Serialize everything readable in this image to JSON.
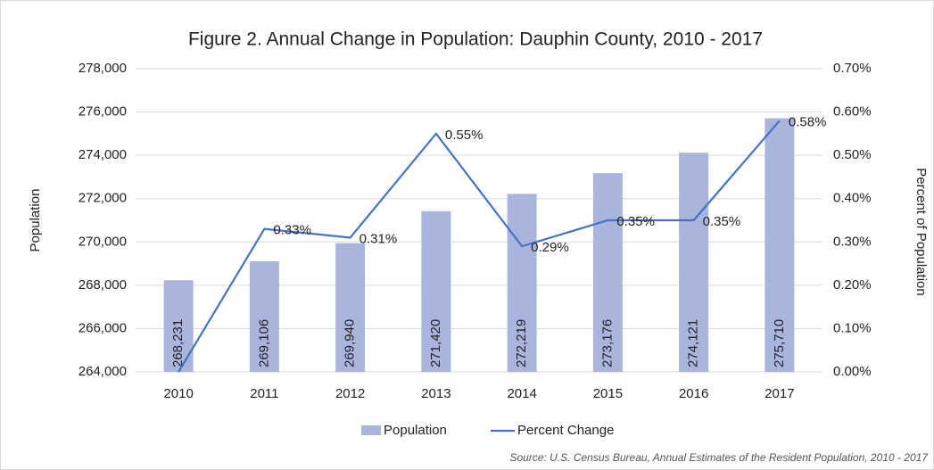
{
  "chart_data": {
    "type": "bar_line",
    "title": "Figure 2. Annual Change in Population: Dauphin County, 2010 - 2017",
    "y_label": "Population",
    "y2_label": "Percent of Population",
    "source": "Source: U.S. Census Bureau, Annual Estimates of the Resident Population, 2010 - 2017",
    "categories": [
      "2010",
      "2011",
      "2012",
      "2013",
      "2014",
      "2015",
      "2016",
      "2017"
    ],
    "series": [
      {
        "name": "Population",
        "type": "bar",
        "color": "#a9b5dd",
        "values": [
          268231,
          269106,
          269940,
          271420,
          272219,
          273176,
          274121,
          275710
        ],
        "value_labels": [
          "268,231",
          "269,106",
          "269,940",
          "271,420",
          "272,219",
          "273,176",
          "274,121",
          "275,710"
        ]
      },
      {
        "name": "Percent Change",
        "type": "line",
        "axis": "y2",
        "color": "#4472c4",
        "values": [
          0,
          0.33,
          0.31,
          0.55,
          0.29,
          0.35,
          0.35,
          0.58
        ],
        "value_labels": [
          null,
          "0.33%",
          "0.31%",
          "0.55%",
          "0.29%",
          "0.35%",
          "0.35%",
          "0.58%"
        ]
      }
    ],
    "ylim": [
      264000,
      278000
    ],
    "yticks": [
      {
        "value": 264000,
        "label": "264,000"
      },
      {
        "value": 266000,
        "label": "266,000"
      },
      {
        "value": 268000,
        "label": "268,000"
      },
      {
        "value": 270000,
        "label": "270,000"
      },
      {
        "value": 272000,
        "label": "272,000"
      },
      {
        "value": 274000,
        "label": "274,000"
      },
      {
        "value": 276000,
        "label": "276,000"
      },
      {
        "value": 278000,
        "label": "278,000"
      }
    ],
    "y2lim": [
      0,
      0.7
    ],
    "y2ticks": [
      {
        "value": 0,
        "label": "0.00%"
      },
      {
        "value": 0.1,
        "label": "0.10%"
      },
      {
        "value": 0.2,
        "label": "0.20%"
      },
      {
        "value": 0.3,
        "label": "0.30%"
      },
      {
        "value": 0.4,
        "label": "0.40%"
      },
      {
        "value": 0.5,
        "label": "0.50%"
      },
      {
        "value": 0.6,
        "label": "0.60%"
      },
      {
        "value": 0.7,
        "label": "0.70%"
      }
    ],
    "legend": "bottom"
  }
}
